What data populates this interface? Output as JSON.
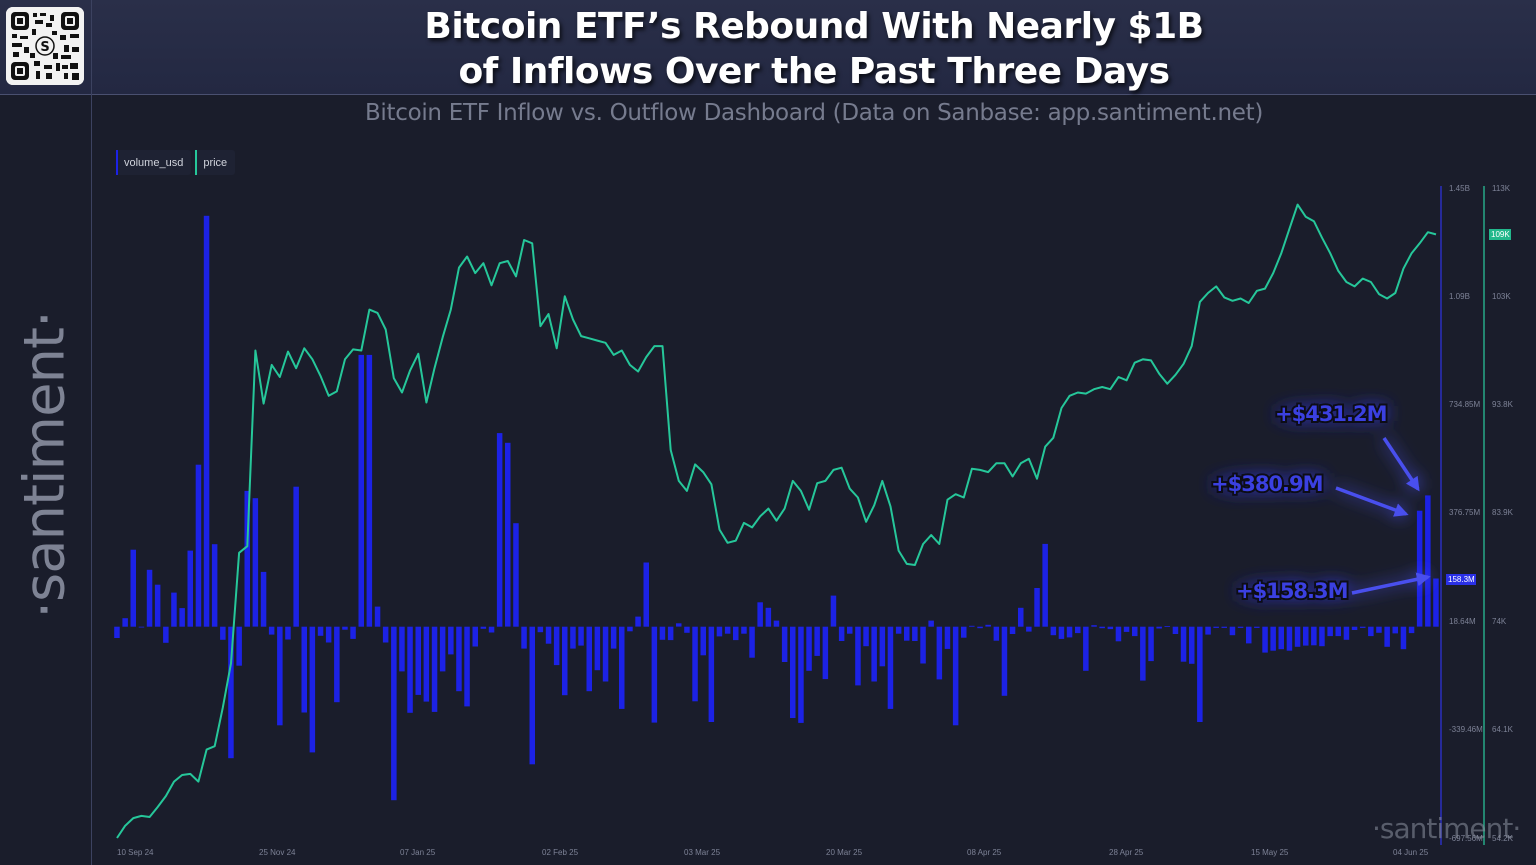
{
  "header": {
    "title_line1": "Bitcoin ETF’s Rebound With Nearly $1B",
    "title_line2": "of Inflows Over the Past Three Days",
    "subtitle": "Bitcoin ETF Inflow vs. Outflow Dashboard (Data on Sanbase: app.santiment.net)",
    "qr_icon": "qr-code-icon"
  },
  "watermark": {
    "vertical": "·santiment·",
    "bottom": "·santiment·"
  },
  "legend": [
    {
      "label": "volume_usd",
      "color": "#1c22e6"
    },
    {
      "label": "price",
      "color": "#26c79a"
    }
  ],
  "axes": {
    "left_ticks": [
      "1.45B",
      "1.09B",
      "734.85M",
      "376.75M",
      "18.64M",
      "-339.46M",
      "-697.56M"
    ],
    "right_ticks": [
      "113K",
      "103K",
      "93.8K",
      "83.9K",
      "74K",
      "64.1K",
      "54.2K"
    ],
    "left_current": "158.3M",
    "right_current": "109K",
    "x_ticks": [
      "10 Sep 24",
      "25 Nov 24",
      "07 Jan 25",
      "02 Feb 25",
      "03 Mar 25",
      "20 Mar 25",
      "08 Apr 25",
      "28 Apr 25",
      "15 May 25",
      "04 Jun 25"
    ]
  },
  "annotations": [
    {
      "text": "+$431.2M"
    },
    {
      "text": "+$380.9M"
    },
    {
      "text": "+$158.3M"
    }
  ],
  "colors": {
    "background": "#1a1d2b",
    "bar": "#1c22e6",
    "price_line": "#26c79a",
    "annotation": "#3a40e0"
  },
  "chart_data": {
    "type": "bar",
    "title": "Bitcoin ETF’s Rebound With Nearly $1B of Inflows Over the Past Three Days",
    "subtitle": "Bitcoin ETF Inflow vs. Outflow Dashboard (Data on Sanbase: app.santiment.net)",
    "xlabel": "",
    "ylabel": "volume_usd",
    "x_range": [
      "10 Sep 24",
      "06 Jun 25"
    ],
    "ylim": [
      -697.56,
      1450
    ],
    "y2lim": [
      54200,
      113000
    ],
    "legend_position": "top-left",
    "grid": false,
    "series": [
      {
        "name": "volume_usd",
        "type": "bar",
        "unit": "USD millions",
        "values": [
          -37,
          28,
          253,
          0,
          187,
          138,
          -53,
          112,
          61,
          250,
          532,
          1350,
          271,
          -43,
          -432,
          -128,
          446,
          422,
          180,
          -26,
          -324,
          -42,
          460,
          -282,
          -413,
          -30,
          -52,
          -248,
          -10,
          -40,
          893,
          893,
          66,
          -52,
          -570,
          -147,
          -283,
          -224,
          -246,
          -280,
          -147,
          -91,
          -212,
          -262,
          -65,
          -7,
          -19,
          636,
          604,
          340,
          -72,
          -452,
          -18,
          -56,
          -126,
          -225,
          -72,
          -62,
          -212,
          -143,
          -180,
          -72,
          -270,
          -15,
          33,
          211,
          -315,
          -43,
          -44,
          11,
          -20,
          -245,
          -94,
          -313,
          -32,
          -23,
          -44,
          -23,
          -102,
          80,
          62,
          20,
          -116,
          -300,
          -316,
          -145,
          -96,
          -172,
          102,
          -47,
          -23,
          -193,
          -64,
          -180,
          -130,
          -270,
          -23,
          -46,
          -47,
          -121,
          20,
          -173,
          -73,
          -324,
          -36,
          3,
          -5,
          6,
          -46,
          -227,
          -24,
          62,
          -16,
          127,
          272,
          -28,
          -40,
          -35,
          -21,
          -145,
          5,
          -5,
          -8,
          -48,
          -17,
          -31,
          -177,
          -113,
          -6,
          2,
          -24,
          -115,
          -122,
          -313,
          -26,
          -4,
          -4,
          -28,
          -4,
          -55,
          -4,
          -85,
          -79,
          -74,
          -79,
          -66,
          -62,
          -61,
          -64,
          -31,
          -31,
          -43,
          -11,
          -4,
          -31,
          -20,
          -66,
          -22,
          -74,
          -21,
          380.9,
          431.2,
          158.3
        ]
      },
      {
        "name": "price",
        "type": "line",
        "unit": "USD",
        "values": [
          54200,
          55300,
          56000,
          56200,
          56100,
          57000,
          58000,
          59300,
          59900,
          60000,
          59300,
          62200,
          62500,
          66000,
          70000,
          80000,
          80600,
          98300,
          93500,
          97000,
          95900,
          98200,
          96700,
          98500,
          97500,
          96000,
          94200,
          94600,
          97500,
          98400,
          98300,
          102000,
          101700,
          100200,
          95800,
          94500,
          96500,
          98000,
          93600,
          96700,
          99500,
          102000,
          105800,
          106800,
          105300,
          106200,
          104200,
          106200,
          106400,
          105000,
          108300,
          108000,
          100500,
          101600,
          98500,
          103200,
          101100,
          99600,
          99400,
          99200,
          99000,
          97900,
          98300,
          97000,
          96400,
          97700,
          98700,
          98700,
          89300,
          86500,
          85600,
          88000,
          87300,
          86200,
          82100,
          80900,
          81100,
          82700,
          82300,
          83300,
          84000,
          82900,
          84000,
          86500,
          85600,
          83900,
          86300,
          86500,
          87500,
          87700,
          85800,
          85000,
          82800,
          84300,
          86500,
          84200,
          80200,
          79000,
          78900,
          80800,
          81600,
          80800,
          84800,
          85300,
          85000,
          87600,
          87500,
          87300,
          88100,
          88100,
          86900,
          88100,
          88500,
          86700,
          89600,
          90400,
          93100,
          94200,
          94500,
          94400,
          94800,
          95000,
          94800,
          95900,
          95600,
          97200,
          97500,
          97400,
          96200,
          95300,
          96100,
          97100,
          98700,
          102700,
          103500,
          104100,
          103100,
          102800,
          103000,
          102600,
          103700,
          103900,
          105300,
          107100,
          109300,
          111500,
          110400,
          110000,
          108500,
          107100,
          105500,
          104500,
          104100,
          104800,
          104500,
          103400,
          103000,
          103500,
          105700,
          107100,
          108000,
          109000,
          108800
        ]
      }
    ],
    "annotations": [
      {
        "text": "+$431.2M",
        "target": "second-to-last bar"
      },
      {
        "text": "+$380.9M",
        "target": "third-to-last bar"
      },
      {
        "text": "+$158.3M",
        "target": "last bar"
      }
    ],
    "current_values": {
      "volume_usd": "158.3M",
      "price": "109K"
    }
  }
}
